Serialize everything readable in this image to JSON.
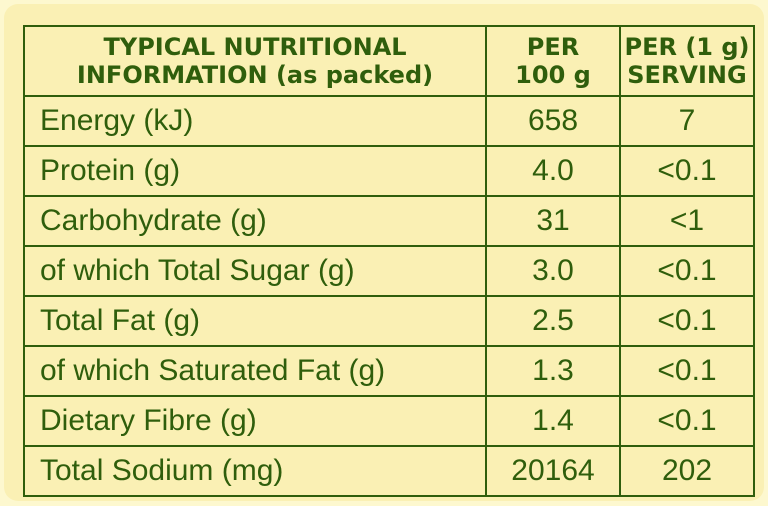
{
  "table": {
    "headers": [
      [
        "TYPICAL NUTRITIONAL",
        "INFORMATION (as packed)"
      ],
      [
        "PER",
        "100 g"
      ],
      [
        "PER (1 g)",
        "SERVING"
      ]
    ],
    "rows": [
      {
        "nutrient": "Energy  (kJ)",
        "per_100g": "658",
        "per_serving": "7"
      },
      {
        "nutrient": "Protein (g)",
        "per_100g": "4.0",
        "per_serving": "<0.1"
      },
      {
        "nutrient": "Carbohydrate (g)",
        "per_100g": "31",
        "per_serving": "<1"
      },
      {
        "nutrient": "of which Total Sugar (g)",
        "per_100g": "3.0",
        "per_serving": "<0.1"
      },
      {
        "nutrient": "Total Fat (g)",
        "per_100g": "2.5",
        "per_serving": "<0.1"
      },
      {
        "nutrient": "of which Saturated Fat (g)",
        "per_100g": "1.3",
        "per_serving": "<0.1"
      },
      {
        "nutrient": "Dietary Fibre (g)",
        "per_100g": "1.4",
        "per_serving": "<0.1"
      },
      {
        "nutrient": "Total Sodium (mg)",
        "per_100g": "20164",
        "per_serving": "202"
      }
    ]
  },
  "colors": {
    "text_and_border": "#2f5e0c",
    "panel_background": "#faf0b4",
    "page_background": "#fdf8cf"
  }
}
